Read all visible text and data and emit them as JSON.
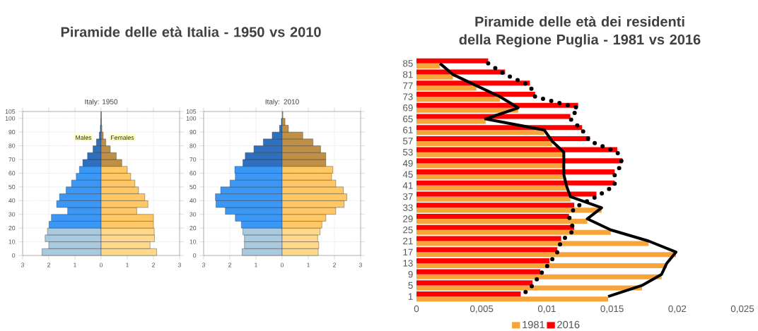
{
  "chart_data": [
    {
      "type": "bar",
      "orientation": "horizontal",
      "stacked": true,
      "title": "Piramide delle età Italia - 1950 vs 2010",
      "subtitle": "Italy: 1950",
      "x": [
        2.5,
        7.5,
        12.5,
        17.5,
        22.5,
        27.5,
        32.5,
        37.5,
        42.5,
        47.5,
        52.5,
        57.5,
        62.5,
        67.5,
        72.5,
        77.5,
        82.5,
        87.5,
        92.5,
        97.5,
        102.5
      ],
      "xlim": [
        -3,
        3
      ],
      "xticks": [
        {
          "value": -3,
          "label": "3"
        },
        {
          "value": -2,
          "label": "2"
        },
        {
          "value": -1,
          "label": "1"
        },
        0,
        1,
        2,
        3
      ],
      "ylim": [
        0,
        105
      ],
      "yticks": [
        0,
        10,
        20,
        30,
        40,
        50,
        60,
        70,
        80,
        90,
        100,
        105
      ],
      "grid": true,
      "legend": false,
      "series": [
        {
          "name": "Males",
          "colors": [
            "#a9c9df",
            "#a9c9df",
            "#a9c9df",
            "#a9c9df",
            "#3a97f5",
            "#3a97f5",
            "#3a97f5",
            "#3a97f5",
            "#3a97f5",
            "#3a97f5",
            "#3a97f5",
            "#3a97f5",
            "#3a97f5",
            "#2d70c0",
            "#2d70c0",
            "#2d70c0",
            "#2d70c0",
            "#2d70c0",
            "#2d70c0",
            "#2d70c0",
            "#2d70c0"
          ],
          "values": [
            -2.26,
            -2.0,
            -2.14,
            -2.05,
            -1.99,
            -1.9,
            -1.28,
            -1.7,
            -1.59,
            -1.34,
            -1.13,
            -0.95,
            -0.83,
            -0.7,
            -0.52,
            -0.31,
            -0.18,
            -0.07,
            -0.03,
            -0.01,
            0
          ]
        },
        {
          "name": "Females",
          "colors": [
            "#ffd88a",
            "#ffd88a",
            "#ffd88a",
            "#ffd88a",
            "#ffc864",
            "#ffc864",
            "#ffc864",
            "#ffc864",
            "#ffc864",
            "#ffc864",
            "#ffc864",
            "#ffc864",
            "#ffc864",
            "#bf8f45",
            "#bf8f45",
            "#bf8f45",
            "#bf8f45",
            "#bf8f45",
            "#bf8f45",
            "#bf8f45",
            "#bf8f45"
          ],
          "values": [
            2.12,
            1.87,
            2.04,
            2.03,
            2.0,
            2.0,
            1.36,
            1.79,
            1.67,
            1.43,
            1.29,
            1.13,
            1.0,
            0.79,
            0.58,
            0.35,
            0.18,
            0.08,
            0.03,
            0.01,
            0
          ]
        }
      ]
    },
    {
      "type": "bar",
      "orientation": "horizontal",
      "stacked": true,
      "title": "Italy: 2010",
      "x": [
        2.5,
        7.5,
        12.5,
        17.5,
        22.5,
        27.5,
        32.5,
        37.5,
        42.5,
        47.5,
        52.5,
        57.5,
        62.5,
        67.5,
        72.5,
        77.5,
        82.5,
        87.5,
        92.5,
        97.5,
        102.5
      ],
      "xlim": [
        -3,
        3
      ],
      "xticks": [
        {
          "value": -3,
          "label": "3"
        },
        {
          "value": -2,
          "label": "2"
        },
        {
          "value": -1,
          "label": "1"
        },
        0,
        1,
        2,
        3
      ],
      "ylim": [
        0,
        105
      ],
      "yticks": [
        0,
        10,
        20,
        30,
        40,
        50,
        60,
        70,
        80,
        90,
        100,
        105
      ],
      "grid": true,
      "legend": false,
      "series": [
        {
          "colors": [
            "#a9c9df",
            "#a9c9df",
            "#a9c9df",
            "#a9c9df",
            "#3a97f5",
            "#3a97f5",
            "#3a97f5",
            "#3a97f5",
            "#3a97f5",
            "#3a97f5",
            "#3a97f5",
            "#3a97f5",
            "#3a97f5",
            "#2d70c0",
            "#2d70c0",
            "#2d70c0",
            "#2d70c0",
            "#2d70c0",
            "#2d70c0",
            "#2d70c0",
            "#2d70c0"
          ],
          "values": [
            -1.53,
            -1.44,
            -1.44,
            -1.5,
            -1.56,
            -1.79,
            -2.17,
            -2.53,
            -2.55,
            -2.35,
            -1.99,
            -1.79,
            -1.81,
            -1.5,
            -1.41,
            -1.08,
            -0.72,
            -0.38,
            -0.1,
            -0.03,
            null
          ]
        },
        {
          "colors": [
            "#ffd88a",
            "#ffd88a",
            "#ffd88a",
            "#ffd88a",
            "#ffc864",
            "#ffc864",
            "#ffc864",
            "#ffc864",
            "#ffc864",
            "#ffc864",
            "#ffc864",
            "#ffc864",
            "#ffc864",
            "#bf8f45",
            "#bf8f45",
            "#bf8f45",
            "#bf8f45",
            "#bf8f45",
            "#bf8f45",
            "#bf8f45",
            "#bf8f45"
          ],
          "values": [
            1.38,
            1.4,
            1.36,
            1.45,
            1.52,
            1.67,
            2.05,
            2.37,
            2.47,
            2.34,
            2.05,
            1.89,
            1.94,
            1.67,
            1.67,
            1.47,
            1.18,
            0.79,
            0.24,
            0.11,
            0.03
          ]
        }
      ]
    },
    {
      "type": "bar",
      "orientation": "horizontal",
      "title": "Piramide delle età dei residenti della Regione Puglia - 1981 vs 2016",
      "categories": [
        "85",
        "81",
        "77",
        "73",
        "69",
        "65",
        "61",
        "57",
        "53",
        "49",
        "45",
        "41",
        "37",
        "33",
        "29",
        "25",
        "21",
        "17",
        "13",
        "9",
        "5",
        "1"
      ],
      "xlim": [
        0,
        0.025
      ],
      "xticks": [
        0,
        {
          "value": 0.005,
          "label": "0,005"
        },
        {
          "value": 0.01,
          "label": "0,01"
        },
        {
          "value": 0.015,
          "label": "0,015"
        },
        {
          "value": 0.02,
          "label": "0,02"
        },
        {
          "value": 0.025,
          "label": "0,025"
        }
      ],
      "legend": "bottom",
      "series": [
        {
          "name": "1981",
          "color": "#f7a43b",
          "values": [
            0.0018,
            0.0028,
            0.0046,
            0.0064,
            0.0078,
            0.0053,
            0.0098,
            0.0104,
            0.0113,
            0.0113,
            0.0113,
            0.0115,
            0.0118,
            0.0142,
            0.0131,
            0.0149,
            0.0178,
            0.0199,
            0.0192,
            0.0188,
            0.0173,
            0.0147
          ]
        },
        {
          "name": "2016",
          "color": "#ff0000",
          "values": [
            0.0055,
            0.0068,
            0.0087,
            0.0091,
            0.0124,
            0.0118,
            0.0127,
            0.0133,
            0.0154,
            0.0158,
            0.0152,
            0.0152,
            0.0138,
            0.0121,
            0.0117,
            0.0121,
            0.0111,
            0.0108,
            0.0102,
            0.0095,
            0.0089,
            0.008
          ]
        },
        {
          "type": "line",
          "color": "#000000",
          "line_style": "solid",
          "values": [
            0.0018,
            0.0028,
            0.0046,
            0.0064,
            0.0078,
            0.0053,
            0.0098,
            0.0104,
            0.0113,
            0.0113,
            0.0113,
            0.0115,
            0.0118,
            0.0142,
            0.0131,
            0.0149,
            0.0178,
            0.0199,
            0.0192,
            0.0188,
            0.0173,
            0.0147
          ]
        },
        {
          "type": "line",
          "color": "#000000",
          "line_style": "dotted",
          "values": [
            0.0055,
            0.0068,
            0.0087,
            0.0091,
            0.0124,
            0.0118,
            0.0127,
            0.0133,
            0.0154,
            0.0158,
            0.0152,
            0.0152,
            0.0138,
            0.0121,
            0.0117,
            0.0121,
            0.0111,
            0.0108,
            0.0102,
            0.0095,
            0.0089,
            0.008
          ]
        }
      ]
    }
  ]
}
